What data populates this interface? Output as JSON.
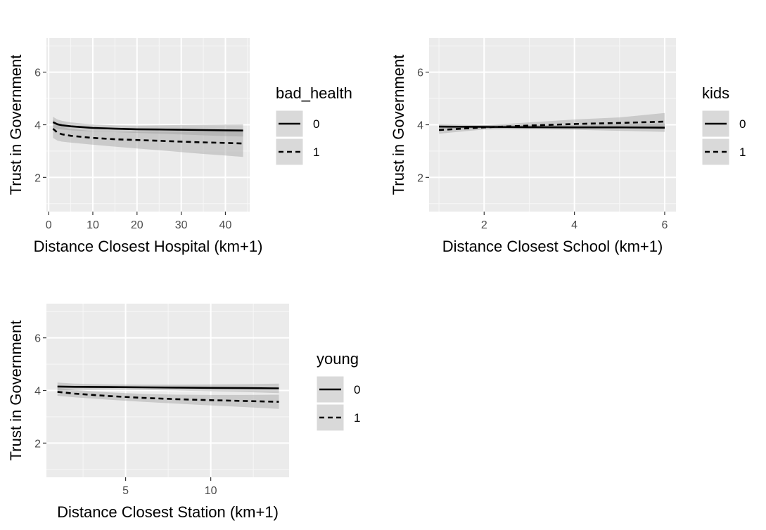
{
  "chart_data": [
    {
      "type": "line",
      "xlabel": "Distance Closest Hospital (km+1)",
      "ylabel": "Trust in Government",
      "xlim": [
        -0.5,
        45.5
      ],
      "ylim": [
        0.7,
        7.3
      ],
      "xticks": [
        0,
        10,
        20,
        30,
        40
      ],
      "yticks": [
        2,
        4,
        6
      ],
      "grid": true,
      "legend": {
        "title": "bad_health",
        "position": "right",
        "entries": [
          "0",
          "1"
        ]
      },
      "series": [
        {
          "name": "0",
          "linestyle": "solid",
          "x": [
            1,
            2,
            3,
            5,
            10,
            15,
            20,
            25,
            30,
            35,
            40,
            44
          ],
          "y": [
            4.1,
            4.02,
            3.98,
            3.94,
            3.88,
            3.85,
            3.83,
            3.82,
            3.81,
            3.8,
            3.79,
            3.78
          ],
          "lower": [
            3.9,
            3.84,
            3.82,
            3.79,
            3.75,
            3.72,
            3.69,
            3.66,
            3.63,
            3.6,
            3.57,
            3.55
          ],
          "upper": [
            4.3,
            4.2,
            4.15,
            4.09,
            4.01,
            3.98,
            3.97,
            3.98,
            3.99,
            4.0,
            4.01,
            4.02
          ]
        },
        {
          "name": "1",
          "linestyle": "dashed",
          "x": [
            1,
            2,
            3,
            5,
            10,
            15,
            20,
            25,
            30,
            35,
            40,
            44
          ],
          "y": [
            3.85,
            3.7,
            3.64,
            3.58,
            3.5,
            3.45,
            3.42,
            3.39,
            3.36,
            3.33,
            3.31,
            3.29
          ],
          "lower": [
            3.5,
            3.4,
            3.36,
            3.32,
            3.24,
            3.17,
            3.1,
            3.03,
            2.96,
            2.89,
            2.83,
            2.78
          ],
          "upper": [
            4.2,
            4.0,
            3.92,
            3.84,
            3.76,
            3.73,
            3.74,
            3.75,
            3.76,
            3.77,
            3.79,
            3.8
          ]
        }
      ]
    },
    {
      "type": "line",
      "xlabel": "Distance Closest School (km+1)",
      "ylabel": "Trust in Government",
      "xlim": [
        0.78,
        6.25
      ],
      "ylim": [
        0.7,
        7.3
      ],
      "xticks": [
        2,
        4,
        6
      ],
      "yticks": [
        2,
        4,
        6
      ],
      "grid": true,
      "legend": {
        "title": "kids",
        "position": "right",
        "entries": [
          "0",
          "1"
        ]
      },
      "series": [
        {
          "name": "0",
          "linestyle": "solid",
          "x": [
            1,
            2,
            3,
            4,
            5,
            6
          ],
          "y": [
            3.93,
            3.92,
            3.91,
            3.9,
            3.9,
            3.89
          ],
          "lower": [
            3.83,
            3.85,
            3.83,
            3.81,
            3.77,
            3.73
          ],
          "upper": [
            4.03,
            3.99,
            3.99,
            3.99,
            4.03,
            4.05
          ]
        },
        {
          "name": "1",
          "linestyle": "dashed",
          "x": [
            1,
            2,
            3,
            4,
            5,
            6
          ],
          "y": [
            3.8,
            3.9,
            3.97,
            4.03,
            4.07,
            4.12
          ],
          "lower": [
            3.66,
            3.82,
            3.85,
            3.86,
            3.86,
            3.83
          ],
          "upper": [
            3.94,
            3.98,
            4.09,
            4.2,
            4.28,
            4.45
          ]
        }
      ]
    },
    {
      "type": "line",
      "xlabel": "Distance Closest Station (km+1)",
      "ylabel": "Trust in Government",
      "xlim": [
        0.35,
        14.6
      ],
      "ylim": [
        0.7,
        7.3
      ],
      "xticks": [
        5,
        10
      ],
      "yticks": [
        2,
        4,
        6
      ],
      "grid": true,
      "legend": {
        "title": "young",
        "position": "right",
        "entries": [
          "0",
          "1"
        ]
      },
      "series": [
        {
          "name": "0",
          "linestyle": "solid",
          "x": [
            1,
            2,
            4,
            6,
            8,
            10,
            12,
            14
          ],
          "y": [
            4.15,
            4.14,
            4.13,
            4.12,
            4.11,
            4.1,
            4.09,
            4.08
          ],
          "lower": [
            4.0,
            4.02,
            4.03,
            4.02,
            4.0,
            3.97,
            3.94,
            3.9
          ],
          "upper": [
            4.3,
            4.26,
            4.23,
            4.22,
            4.22,
            4.23,
            4.24,
            4.26
          ]
        },
        {
          "name": "1",
          "linestyle": "dashed",
          "x": [
            1,
            2,
            4,
            6,
            8,
            10,
            12,
            14
          ],
          "y": [
            3.95,
            3.88,
            3.79,
            3.72,
            3.67,
            3.63,
            3.6,
            3.57
          ],
          "lower": [
            3.8,
            3.74,
            3.65,
            3.57,
            3.5,
            3.43,
            3.37,
            3.3
          ],
          "upper": [
            4.1,
            4.02,
            3.93,
            3.87,
            3.84,
            3.83,
            3.83,
            3.84
          ]
        }
      ]
    }
  ]
}
